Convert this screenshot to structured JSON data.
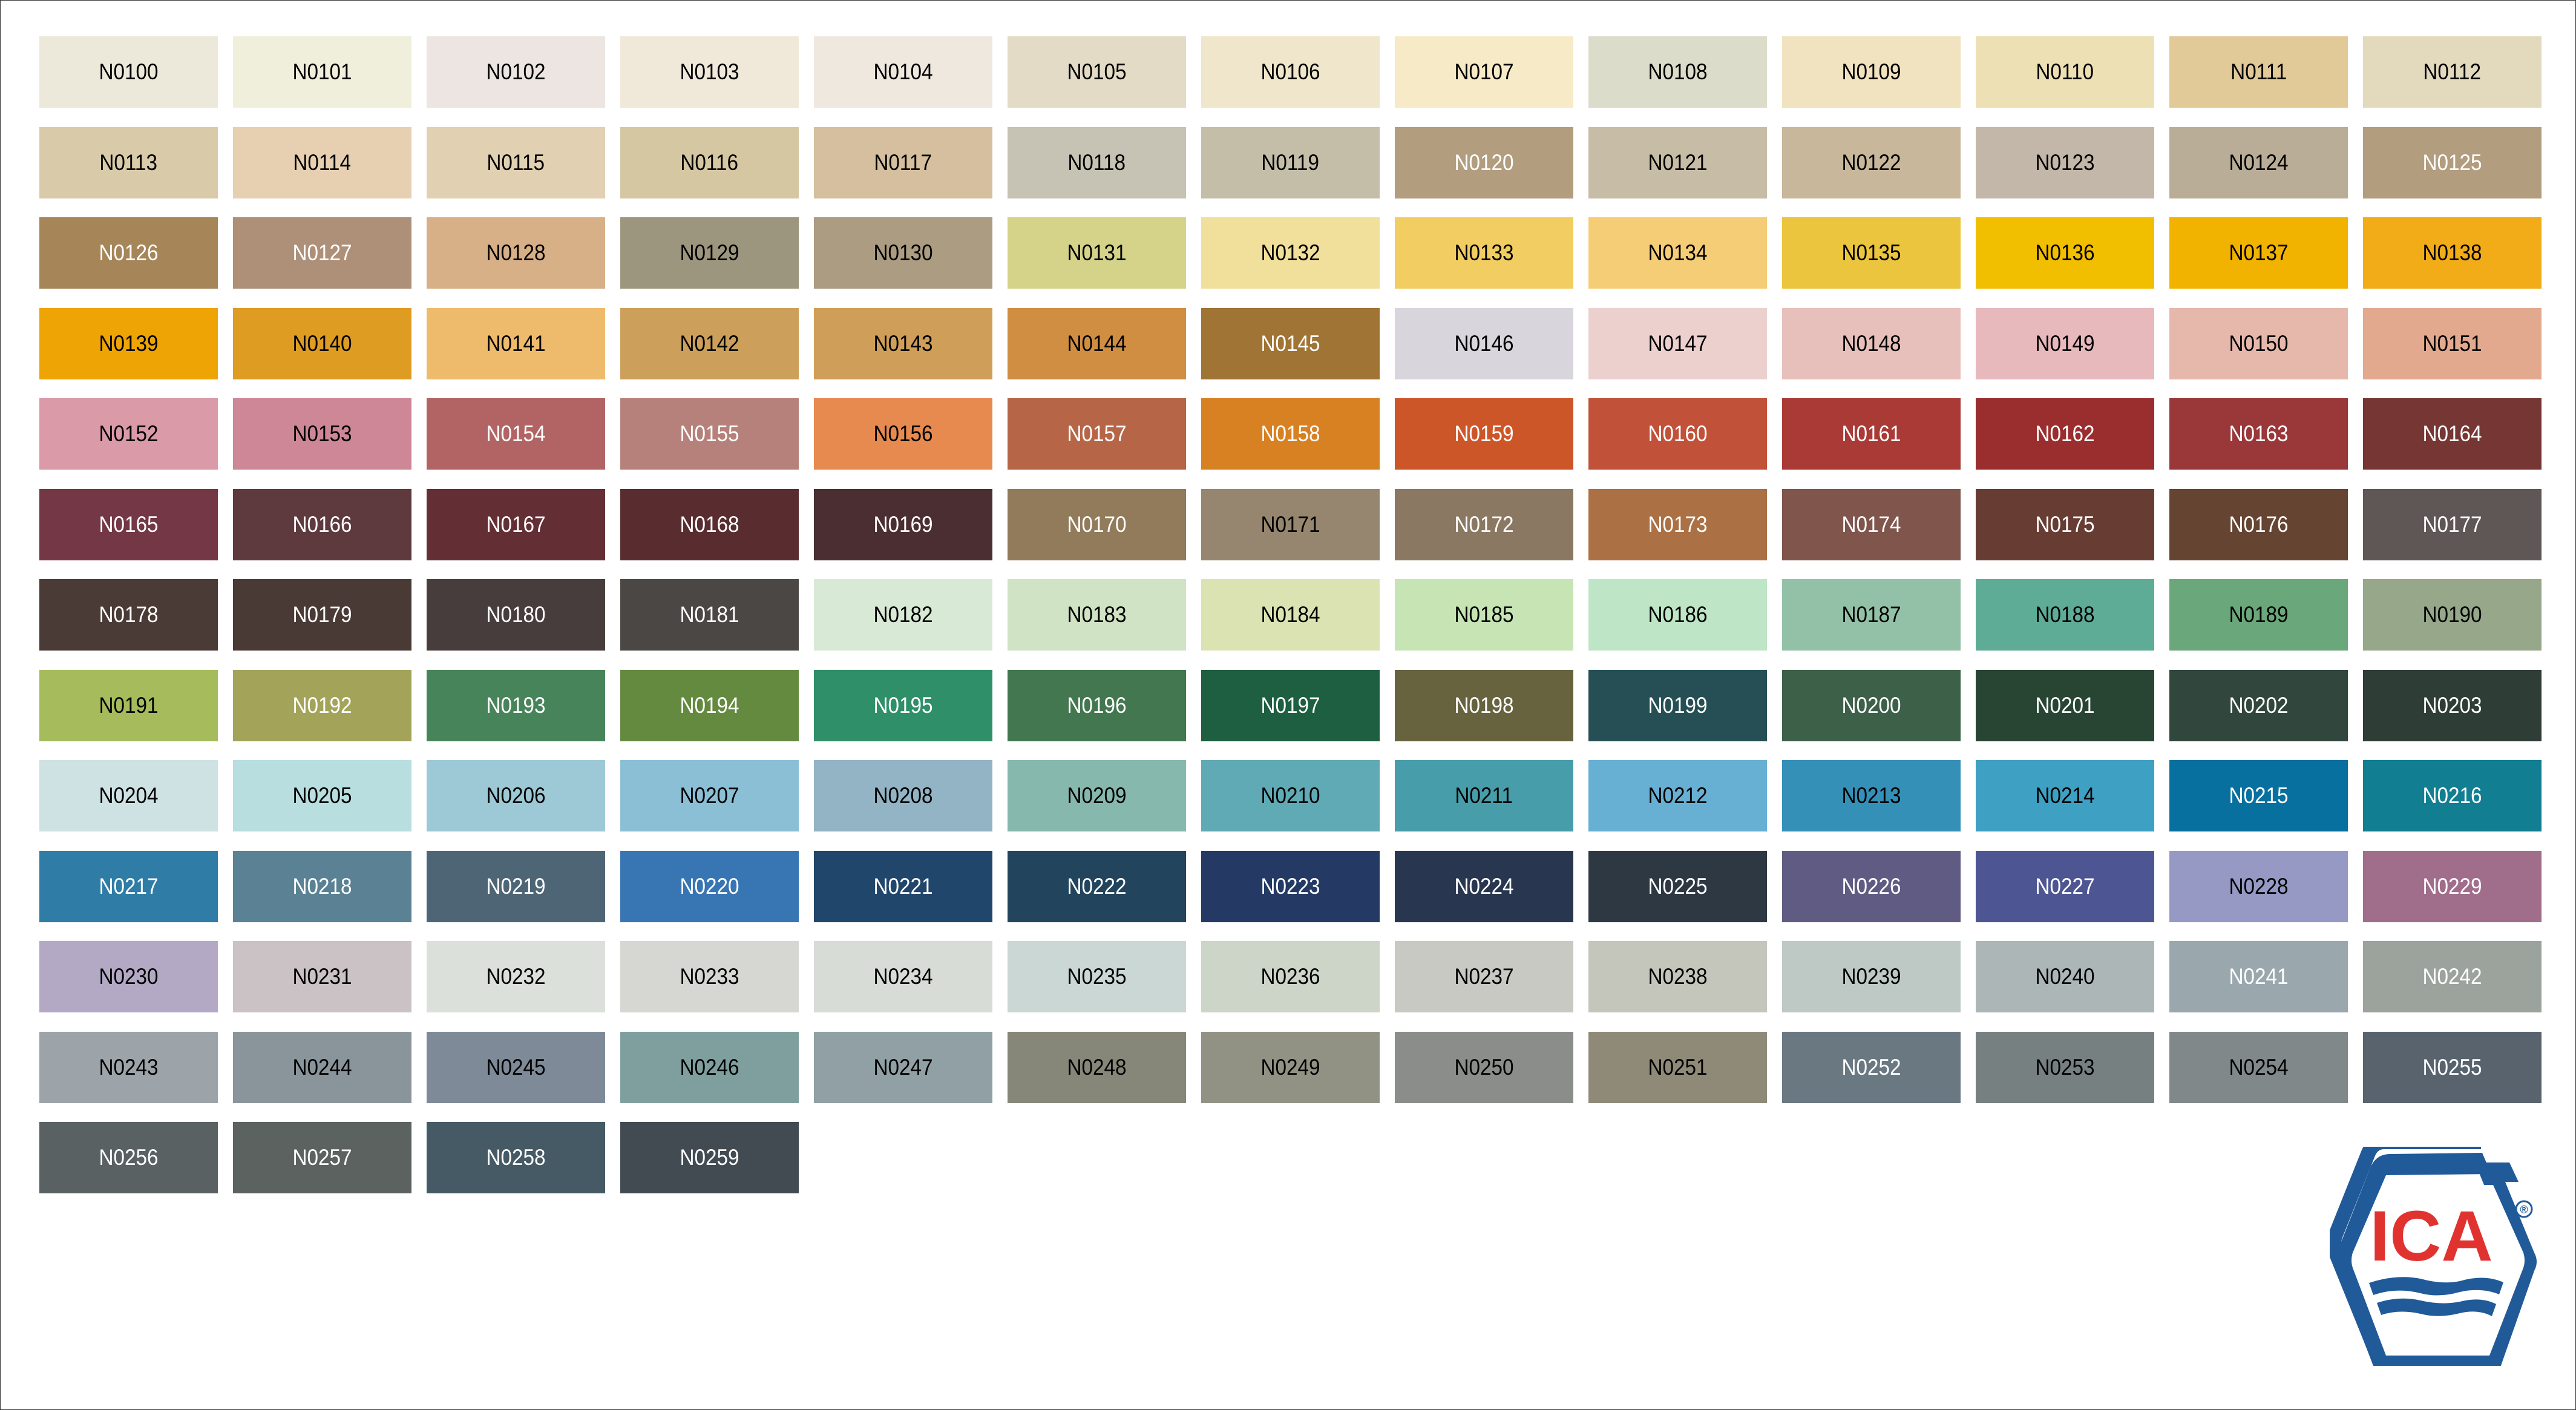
{
  "colors": {
    "logo_blue": "#215a98",
    "logo_red": "#e03330"
  },
  "logo": {
    "text": "ICA",
    "registered": "®"
  },
  "swatches": [
    [
      "N0100",
      "#ece9da",
      "k"
    ],
    [
      "N0101",
      "#efefdb",
      "k"
    ],
    [
      "N0102",
      "#ece5e1",
      "k"
    ],
    [
      "N0103",
      "#f0e9da",
      "k"
    ],
    [
      "N0104",
      "#efe8df",
      "k"
    ],
    [
      "N0105",
      "#e4dbc7",
      "k"
    ],
    [
      "N0106",
      "#efe6cb",
      "k"
    ],
    [
      "N0107",
      "#f7eac6",
      "k"
    ],
    [
      "N0108",
      "#dcdcca",
      "k"
    ],
    [
      "N0109",
      "#f1e2c0",
      "k"
    ],
    [
      "N0110",
      "#ede0b4",
      "k"
    ],
    [
      "N0111",
      "#e1c998",
      "k"
    ],
    [
      "N0112",
      "#e3d9bd",
      "k"
    ],
    [
      "N0113",
      "#d9cba9",
      "k"
    ],
    [
      "N0114",
      "#e7d0b2",
      "k"
    ],
    [
      "N0115",
      "#e1d1b2",
      "k"
    ],
    [
      "N0116",
      "#d5c7a1",
      "k"
    ],
    [
      "N0117",
      "#d5bf9e",
      "k"
    ],
    [
      "N0118",
      "#c6c2b4",
      "k"
    ],
    [
      "N0119",
      "#c4bea9",
      "k"
    ],
    [
      "N0120",
      "#b29d7f",
      "w"
    ],
    [
      "N0121",
      "#c7bca5",
      "k"
    ],
    [
      "N0122",
      "#c8b79b",
      "k"
    ],
    [
      "N0123",
      "#c3b7a9",
      "k"
    ],
    [
      "N0124",
      "#b9ad98",
      "k"
    ],
    [
      "N0125",
      "#b29d7f",
      "w"
    ],
    [
      "N0126",
      "#a68659",
      "w"
    ],
    [
      "N0127",
      "#ae9079",
      "w"
    ],
    [
      "N0128",
      "#d7b087",
      "k"
    ],
    [
      "N0129",
      "#9d967e",
      "k"
    ],
    [
      "N0130",
      "#ab9c82",
      "k"
    ],
    [
      "N0131",
      "#d5d38a",
      "k"
    ],
    [
      "N0132",
      "#f1e09b",
      "k"
    ],
    [
      "N0133",
      "#f2cd61",
      "k"
    ],
    [
      "N0134",
      "#f5cd77",
      "k"
    ],
    [
      "N0135",
      "#ebc53d",
      "k"
    ],
    [
      "N0136",
      "#f2bf00",
      "k"
    ],
    [
      "N0137",
      "#f2b300",
      "k"
    ],
    [
      "N0138",
      "#f2ac18",
      "k"
    ],
    [
      "N0139",
      "#eea405",
      "k"
    ],
    [
      "N0140",
      "#de9c22",
      "k"
    ],
    [
      "N0141",
      "#eebb6d",
      "k"
    ],
    [
      "N0142",
      "#cca05a",
      "k"
    ],
    [
      "N0143",
      "#cf9f59",
      "k"
    ],
    [
      "N0144",
      "#d08e43",
      "k"
    ],
    [
      "N0145",
      "#a07434",
      "w"
    ],
    [
      "N0146",
      "#d8d6dc",
      "k"
    ],
    [
      "N0147",
      "#ecd0ce",
      "k"
    ],
    [
      "N0148",
      "#e7c0bb",
      "k"
    ],
    [
      "N0149",
      "#e7b8bc",
      "k"
    ],
    [
      "N0150",
      "#e6b8ac",
      "k"
    ],
    [
      "N0151",
      "#e2a98e",
      "k"
    ],
    [
      "N0152",
      "#da9aa8",
      "k"
    ],
    [
      "N0153",
      "#cd8797",
      "k"
    ],
    [
      "N0154",
      "#b26465",
      "w"
    ],
    [
      "N0155",
      "#b7817b",
      "w"
    ],
    [
      "N0156",
      "#e78a50",
      "k"
    ],
    [
      "N0157",
      "#b66647",
      "w"
    ],
    [
      "N0158",
      "#d88123",
      "w"
    ],
    [
      "N0159",
      "#cd5628",
      "w"
    ],
    [
      "N0160",
      "#c15139",
      "w"
    ],
    [
      "N0161",
      "#a93a36",
      "w"
    ],
    [
      "N0162",
      "#9a2d2d",
      "w"
    ],
    [
      "N0163",
      "#993739",
      "w"
    ],
    [
      "N0164",
      "#763634",
      "w"
    ],
    [
      "N0165",
      "#733745",
      "w"
    ],
    [
      "N0166",
      "#5e3a3e",
      "w"
    ],
    [
      "N0167",
      "#632f34",
      "w"
    ],
    [
      "N0168",
      "#592d30",
      "w"
    ],
    [
      "N0169",
      "#4b2e31",
      "w"
    ],
    [
      "N0170",
      "#917b5b",
      "w"
    ],
    [
      "N0171",
      "#96866f",
      "k"
    ],
    [
      "N0172",
      "#8b7862",
      "w"
    ],
    [
      "N0173",
      "#ab7044",
      "w"
    ],
    [
      "N0174",
      "#7f554c",
      "w"
    ],
    [
      "N0175",
      "#673d33",
      "w"
    ],
    [
      "N0176",
      "#654432",
      "w"
    ],
    [
      "N0177",
      "#5e5756",
      "w"
    ],
    [
      "N0178",
      "#4a3b36",
      "w"
    ],
    [
      "N0179",
      "#4a3a35",
      "w"
    ],
    [
      "N0180",
      "#473d3c",
      "w"
    ],
    [
      "N0181",
      "#4b4744",
      "w"
    ],
    [
      "N0182",
      "#d8e9d6",
      "k"
    ],
    [
      "N0183",
      "#d0e3c4",
      "k"
    ],
    [
      "N0184",
      "#dce3b3",
      "k"
    ],
    [
      "N0185",
      "#c7e4b5",
      "k"
    ],
    [
      "N0186",
      "#bfe5c7",
      "k"
    ],
    [
      "N0187",
      "#93c1a8",
      "k"
    ],
    [
      "N0188",
      "#5eac95",
      "k"
    ],
    [
      "N0189",
      "#6aa77a",
      "k"
    ],
    [
      "N0190",
      "#96a78a",
      "k"
    ],
    [
      "N0191",
      "#a5bb5c",
      "k"
    ],
    [
      "N0192",
      "#a3a45a",
      "w"
    ],
    [
      "N0193",
      "#48845a",
      "w"
    ],
    [
      "N0194",
      "#648a3f",
      "w"
    ],
    [
      "N0195",
      "#2f8f69",
      "w"
    ],
    [
      "N0196",
      "#43774f",
      "w"
    ],
    [
      "N0197",
      "#1d5f40",
      "w"
    ],
    [
      "N0198",
      "#67633f",
      "w"
    ],
    [
      "N0199",
      "#264f55",
      "w"
    ],
    [
      "N0200",
      "#3c6048",
      "w"
    ],
    [
      "N0201",
      "#284533",
      "w"
    ],
    [
      "N0202",
      "#31463d",
      "w"
    ],
    [
      "N0203",
      "#2e3d35",
      "w"
    ],
    [
      "N0204",
      "#cee2e4",
      "k"
    ],
    [
      "N0205",
      "#b8dedf",
      "k"
    ],
    [
      "N0206",
      "#9dc9d6",
      "k"
    ],
    [
      "N0207",
      "#8abfd6",
      "k"
    ],
    [
      "N0208",
      "#92b4c4",
      "k"
    ],
    [
      "N0209",
      "#86b8ae",
      "k"
    ],
    [
      "N0210",
      "#60aab5",
      "k"
    ],
    [
      "N0211",
      "#479eaa",
      "k"
    ],
    [
      "N0212",
      "#67b0d4",
      "k"
    ],
    [
      "N0213",
      "#3590b8",
      "k"
    ],
    [
      "N0214",
      "#3ea0c2",
      "k"
    ],
    [
      "N0215",
      "#07709f",
      "w"
    ],
    [
      "N0216",
      "#117e92",
      "w"
    ],
    [
      "N0217",
      "#2f7ca6",
      "w"
    ],
    [
      "N0218",
      "#5a8194",
      "w"
    ],
    [
      "N0219",
      "#4e6575",
      "w"
    ],
    [
      "N0220",
      "#3875b3",
      "w"
    ],
    [
      "N0221",
      "#21466b",
      "w"
    ],
    [
      "N0222",
      "#22445c",
      "w"
    ],
    [
      "N0223",
      "#243a64",
      "w"
    ],
    [
      "N0224",
      "#283650",
      "w"
    ],
    [
      "N0225",
      "#2e3843",
      "w"
    ],
    [
      "N0226",
      "#605b83",
      "w"
    ],
    [
      "N0227",
      "#4d5593",
      "w"
    ],
    [
      "N0228",
      "#9599c4",
      "k"
    ],
    [
      "N0229",
      "#a06d8a",
      "w"
    ],
    [
      "N0230",
      "#b3a9c4",
      "k"
    ],
    [
      "N0231",
      "#cbc2c5",
      "k"
    ],
    [
      "N0232",
      "#dce0da",
      "k"
    ],
    [
      "N0233",
      "#d6d7d2",
      "k"
    ],
    [
      "N0234",
      "#d8dcd6",
      "k"
    ],
    [
      "N0235",
      "#cbd7d4",
      "k"
    ],
    [
      "N0236",
      "#cdd4c8",
      "k"
    ],
    [
      "N0237",
      "#c8c9c3",
      "k"
    ],
    [
      "N0238",
      "#c4c5bb",
      "k"
    ],
    [
      "N0239",
      "#bec9c5",
      "k"
    ],
    [
      "N0240",
      "#adb6b7",
      "k"
    ],
    [
      "N0241",
      "#9aa8ae",
      "w"
    ],
    [
      "N0242",
      "#9ca39d",
      "w"
    ],
    [
      "N0243",
      "#9ca4a9",
      "k"
    ],
    [
      "N0244",
      "#8a959b",
      "k"
    ],
    [
      "N0245",
      "#7e8a97",
      "k"
    ],
    [
      "N0246",
      "#7f9f9f",
      "k"
    ],
    [
      "N0247",
      "#90a0a4",
      "k"
    ],
    [
      "N0248",
      "#868679",
      "k"
    ],
    [
      "N0249",
      "#919284",
      "k"
    ],
    [
      "N0250",
      "#8a8d8a",
      "k"
    ],
    [
      "N0251",
      "#8f8978",
      "k"
    ],
    [
      "N0252",
      "#6a7882",
      "w"
    ],
    [
      "N0253",
      "#778081",
      "k"
    ],
    [
      "N0254",
      "#80888a",
      "k"
    ],
    [
      "N0255",
      "#58636e",
      "w"
    ],
    [
      "N0256",
      "#5a6163",
      "w"
    ],
    [
      "N0257",
      "#5c6260",
      "w"
    ],
    [
      "N0258",
      "#455a64",
      "w"
    ],
    [
      "N0259",
      "#424a52",
      "w"
    ]
  ]
}
